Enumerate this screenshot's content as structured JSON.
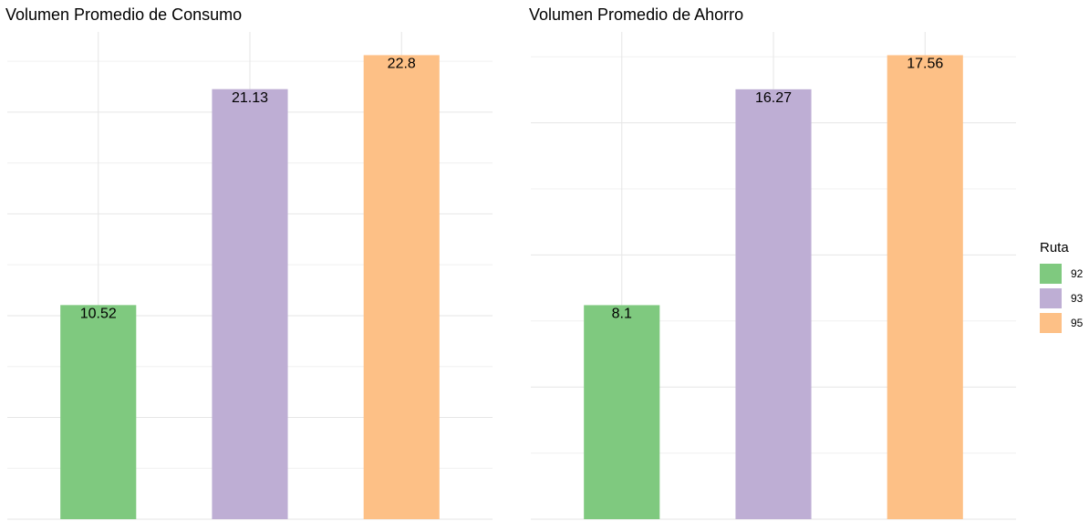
{
  "chart_data": [
    {
      "type": "bar",
      "title": "Volumen Promedio de Consumo",
      "categories": [
        "92",
        "93",
        "95"
      ],
      "values": [
        10.52,
        21.13,
        22.8
      ],
      "colors": [
        "#7fc97f",
        "#beaed4",
        "#fdc086"
      ],
      "ylim": [
        0,
        23.94
      ],
      "yticks": [
        0,
        5,
        10,
        15,
        20
      ],
      "yminor_ticks": [
        2.5,
        7.5,
        12.5,
        17.5,
        22.5
      ],
      "grid": true,
      "tick_labels": false
    },
    {
      "type": "bar",
      "title": "Volumen Promedio de Ahorro",
      "categories": [
        "92",
        "93",
        "95"
      ],
      "values": [
        8.1,
        16.27,
        17.56
      ],
      "colors": [
        "#7fc97f",
        "#beaed4",
        "#fdc086"
      ],
      "ylim": [
        0,
        18.44
      ],
      "yticks": [
        0,
        5,
        10,
        15
      ],
      "yminor_ticks": [
        2.5,
        7.5,
        12.5,
        17.5
      ],
      "grid": true,
      "tick_labels": false
    }
  ],
  "legend": {
    "title": "Ruta",
    "position": "right"
  }
}
